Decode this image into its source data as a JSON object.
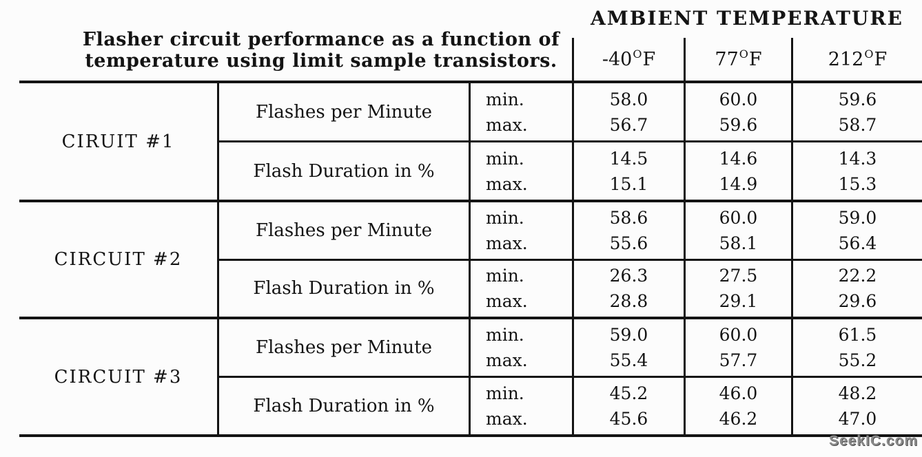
{
  "caption": {
    "line1": "Flasher circuit performance as a function of",
    "line2": "temperature using limit sample transistors."
  },
  "header": {
    "title": "AMBIENT TEMPERATURE"
  },
  "columns": [
    {
      "value": "-40",
      "degree": "O",
      "unit": "F"
    },
    {
      "value": "77",
      "degree": "O",
      "unit": "F"
    },
    {
      "value": "212",
      "degree": "O",
      "unit": "F"
    }
  ],
  "labels": {
    "min": "min.",
    "max": "max."
  },
  "circuits": [
    {
      "name": "CIRUIT #1",
      "params": [
        {
          "label": "Flashes per Minute",
          "min": [
            "58.0",
            "60.0",
            "59.6"
          ],
          "max": [
            "56.7",
            "59.6",
            "58.7"
          ]
        },
        {
          "label": "Flash Duration in %",
          "min": [
            "14.5",
            "14.6",
            "14.3"
          ],
          "max": [
            "15.1",
            "14.9",
            "15.3"
          ]
        }
      ]
    },
    {
      "name": "CIRCUIT #2",
      "params": [
        {
          "label": "Flashes per Minute",
          "min": [
            "58.6",
            "60.0",
            "59.0"
          ],
          "max": [
            "55.6",
            "58.1",
            "56.4"
          ]
        },
        {
          "label": "Flash Duration in %",
          "min": [
            "26.3",
            "27.5",
            "22.2"
          ],
          "max": [
            "28.8",
            "29.1",
            "29.6"
          ]
        }
      ]
    },
    {
      "name": "CIRCUIT #3",
      "params": [
        {
          "label": "Flashes per Minute",
          "min": [
            "59.0",
            "60.0",
            "61.5"
          ],
          "max": [
            "55.4",
            "57.7",
            "55.2"
          ]
        },
        {
          "label": "Flash Duration in %",
          "min": [
            "45.2",
            "46.0",
            "48.2"
          ],
          "max": [
            "45.6",
            "46.2",
            "47.0"
          ]
        }
      ]
    }
  ],
  "watermark": "SeekIC.com",
  "colors": {
    "ink": "#141414",
    "background": "#fcfcfc",
    "watermark_gray": "#8a8a8a"
  },
  "chart_data": {
    "type": "table",
    "title": "Flasher circuit performance as a function of temperature using limit sample transistors.",
    "column_group": "AMBIENT TEMPERATURE",
    "columns": [
      "-40°F",
      "77°F",
      "212°F"
    ],
    "rows": [
      {
        "circuit": "CIRUIT #1",
        "parameter": "Flashes per Minute",
        "min": [
          58.0,
          60.0,
          59.6
        ],
        "max": [
          56.7,
          59.6,
          58.7
        ]
      },
      {
        "circuit": "CIRUIT #1",
        "parameter": "Flash Duration in %",
        "min": [
          14.5,
          14.6,
          14.3
        ],
        "max": [
          15.1,
          14.9,
          15.3
        ]
      },
      {
        "circuit": "CIRCUIT #2",
        "parameter": "Flashes per Minute",
        "min": [
          58.6,
          60.0,
          59.0
        ],
        "max": [
          55.6,
          58.1,
          56.4
        ]
      },
      {
        "circuit": "CIRCUIT #2",
        "parameter": "Flash Duration in %",
        "min": [
          26.3,
          27.5,
          22.2
        ],
        "max": [
          28.8,
          29.1,
          29.6
        ]
      },
      {
        "circuit": "CIRCUIT #3",
        "parameter": "Flashes per Minute",
        "min": [
          59.0,
          60.0,
          61.5
        ],
        "max": [
          55.4,
          57.7,
          55.2
        ]
      },
      {
        "circuit": "CIRCUIT #3",
        "parameter": "Flash Duration in %",
        "min": [
          45.2,
          46.0,
          48.2
        ],
        "max": [
          45.6,
          46.2,
          47.0
        ]
      }
    ]
  }
}
